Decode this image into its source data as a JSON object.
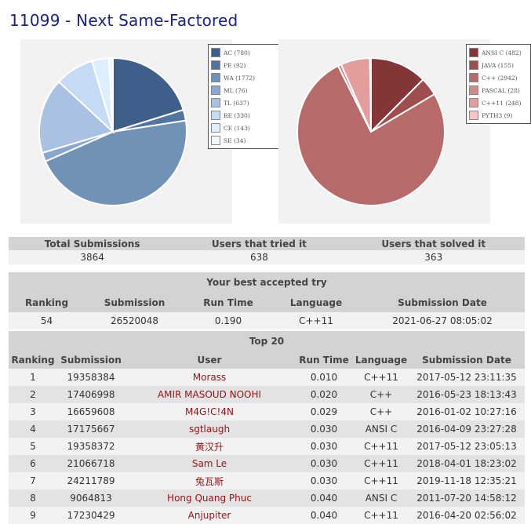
{
  "page": {
    "title": "11099 - Next Same-Factored"
  },
  "chart_data": [
    {
      "type": "pie",
      "legend_position": "right",
      "categories": [
        "AC (780)",
        "PE (92)",
        "WA (1772)",
        "ML (76)",
        "TL (637)",
        "RE (330)",
        "CE (143)",
        "SE (34)"
      ],
      "values": [
        780,
        92,
        1772,
        76,
        637,
        330,
        143,
        34
      ],
      "colors": [
        "#3e5f8a",
        "#5275a0",
        "#7192b7",
        "#8aa8cf",
        "#a9c2e4",
        "#c5daf5",
        "#dceeff",
        "#eef7ff"
      ]
    },
    {
      "type": "pie",
      "legend_position": "right",
      "categories": [
        "ANSI C (482)",
        "JAVA (155)",
        "C++ (2942)",
        "PASCAL (28)",
        "C++11 (248)",
        "PYTH3 (9)"
      ],
      "values": [
        482,
        155,
        2942,
        28,
        248,
        9
      ],
      "colors": [
        "#833538",
        "#a04d50",
        "#b76a6a",
        "#cd8a8a",
        "#e39d9d",
        "#f9c2c5"
      ]
    }
  ],
  "stats": {
    "headers": [
      "Total Submissions",
      "Users that tried it",
      "Users that solved it"
    ],
    "values": [
      "3864",
      "638",
      "363"
    ]
  },
  "best": {
    "caption": "Your best accepted try",
    "headers": [
      "Ranking",
      "Submission",
      "Run Time",
      "Language",
      "Submission Date"
    ],
    "row": [
      "54",
      "26520048",
      "0.190",
      "C++11",
      "2021-06-27 08:05:02"
    ]
  },
  "top20": {
    "caption": "Top 20",
    "headers": [
      "Ranking",
      "Submission",
      "User",
      "Run Time",
      "Language",
      "Submission Date"
    ],
    "rows": [
      [
        "1",
        "19358384",
        "Morass",
        "0.010",
        "C++11",
        "2017-05-12 23:11:35"
      ],
      [
        "2",
        "17406998",
        "AMIR MASOUD NOOHI",
        "0.020",
        "C++",
        "2016-05-23 18:13:43"
      ],
      [
        "3",
        "16659608",
        "M4G!C!4N",
        "0.029",
        "C++",
        "2016-01-02 10:27:16"
      ],
      [
        "4",
        "17175667",
        "sgtlaugh",
        "0.030",
        "ANSI C",
        "2016-04-09 23:27:28"
      ],
      [
        "5",
        "19358372",
        "黄汉升",
        "0.030",
        "C++11",
        "2017-05-12 23:05:13"
      ],
      [
        "6",
        "21066718",
        "Sam Le",
        "0.030",
        "C++11",
        "2018-04-01 18:23:02"
      ],
      [
        "7",
        "24211789",
        "兔瓦斯",
        "0.030",
        "C++11",
        "2019-11-18 12:35:21"
      ],
      [
        "8",
        "9064813",
        "Hong Quang Phuc",
        "0.040",
        "ANSI C",
        "2011-07-20 14:58:12"
      ],
      [
        "9",
        "17230429",
        "Anjupiter",
        "0.040",
        "C++11",
        "2016-04-20 02:56:02"
      ]
    ]
  }
}
